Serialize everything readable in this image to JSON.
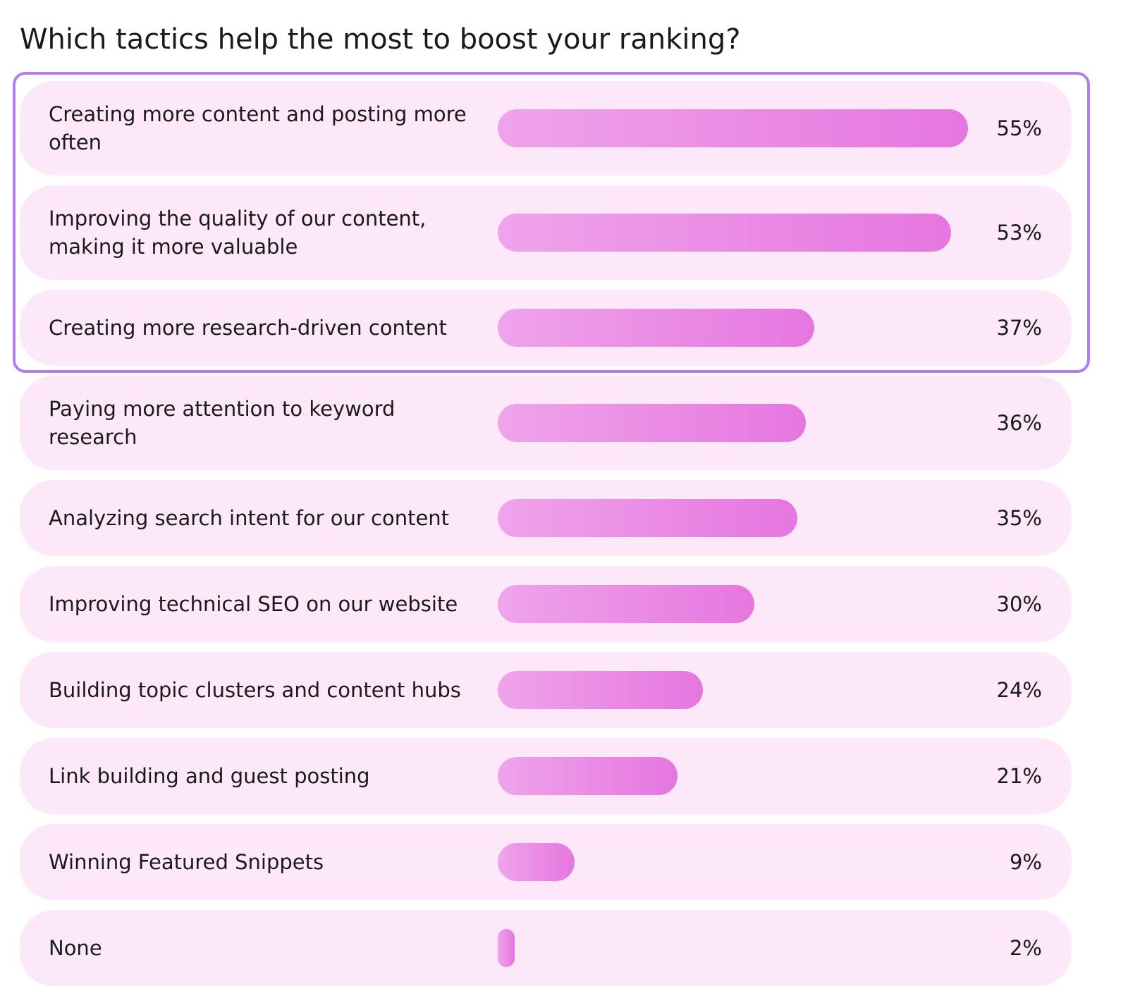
{
  "chart_data": {
    "type": "bar",
    "orientation": "horizontal",
    "title": "Which tactics help the most to boost your ranking?",
    "categories": [
      "Creating more content and posting more often",
      "Improving the quality of our content, making it more valuable",
      "Creating more research-driven content",
      "Paying more attention to keyword research",
      "Analyzing search intent for our content",
      "Improving technical SEO on our website",
      "Building topic clusters and content hubs",
      "Link building and guest posting",
      "Winning Featured Snippets",
      "None"
    ],
    "values": [
      55,
      53,
      37,
      36,
      35,
      30,
      24,
      21,
      9,
      2
    ],
    "value_labels": [
      "55%",
      "53%",
      "37%",
      "36%",
      "35%",
      "30%",
      "24%",
      "21%",
      "9%",
      "2%"
    ],
    "color": "#e676e0"
  }
}
